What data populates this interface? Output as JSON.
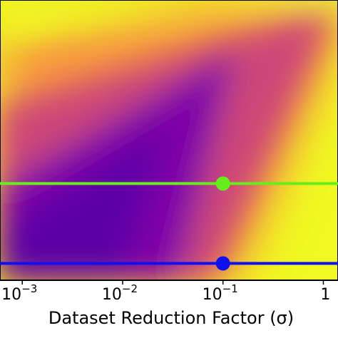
{
  "chart_data": {
    "type": "heatmap",
    "colormap": "plasma",
    "x_scale": "log",
    "xlabel": "Dataset Reduction Factor (σ)",
    "xlim": [
      0.0006,
      1.4
    ],
    "x_ticks": [
      {
        "value": 0.001,
        "base": "10",
        "exp": "−3"
      },
      {
        "value": 0.01,
        "base": "10",
        "exp": "−2"
      },
      {
        "value": 0.1,
        "base": "10",
        "exp": "−1"
      },
      {
        "value": 1,
        "base": "1",
        "exp": ""
      }
    ],
    "overlays": [
      {
        "color": "#66ee1a",
        "marker_x": 0.1,
        "row_fraction": 0.345
      },
      {
        "color": "#1010ee",
        "marker_x": 0.1,
        "row_fraction": 0.06
      }
    ]
  }
}
